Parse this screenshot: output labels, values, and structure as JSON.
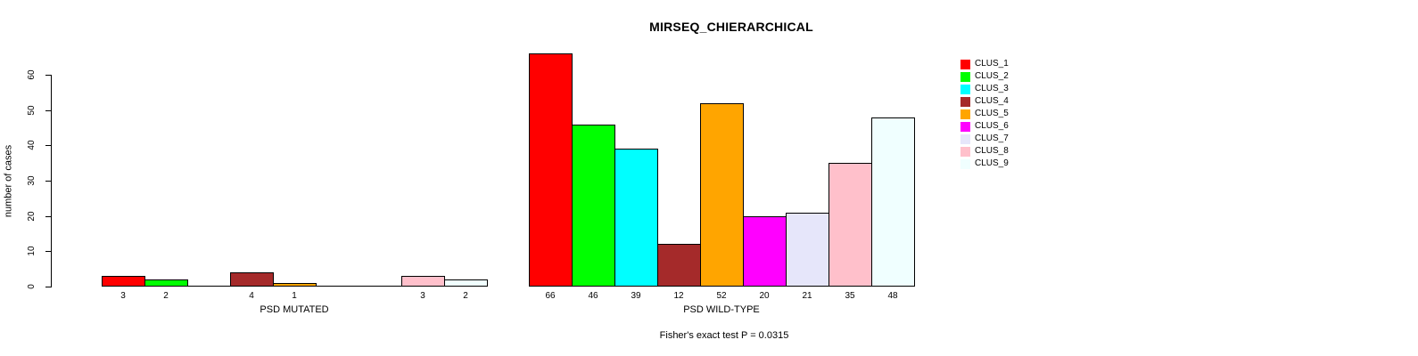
{
  "title": "MIRSEQ_CHIERARCHICAL",
  "chart_data": {
    "type": "bar",
    "title": "MIRSEQ_CHIERARCHICAL",
    "ylabel": "number of cases",
    "xlabel": "",
    "ylim": [
      0,
      66
    ],
    "yticks": [
      0,
      10,
      20,
      30,
      40,
      50,
      60
    ],
    "grid": "off",
    "legend_position": "top-right",
    "categories": [
      "CLUS_1",
      "CLUS_2",
      "CLUS_3",
      "CLUS_4",
      "CLUS_5",
      "CLUS_6",
      "CLUS_7",
      "CLUS_8",
      "CLUS_9"
    ],
    "colors": [
      "#FF0000",
      "#00FF00",
      "#00FFFF",
      "#A52A2A",
      "#FFA500",
      "#FF00FF",
      "#E6E6FA",
      "#FFC0CB",
      "#F0FFFF"
    ],
    "series_note": "two grouped barplots sharing one y axis; bar value printed under each bar, zero bars drawn as flat baseline with no label",
    "groups": [
      {
        "label": "PSD MUTATED",
        "values": [
          3,
          2,
          0,
          4,
          1,
          0,
          0,
          3,
          2
        ]
      },
      {
        "label": "PSD WILD-TYPE",
        "values": [
          66,
          46,
          39,
          12,
          52,
          20,
          21,
          35,
          48
        ]
      }
    ],
    "legend_entries": [
      "CLUS_1",
      "CLUS_2",
      "CLUS_3",
      "CLUS_4",
      "CLUS_5",
      "CLUS_6",
      "CLUS_7",
      "CLUS_8",
      "CLUS_9"
    ],
    "annotation": "Fisher's exact test P = 0.0315"
  },
  "footnote": "Fisher's exact test P = 0.0315"
}
